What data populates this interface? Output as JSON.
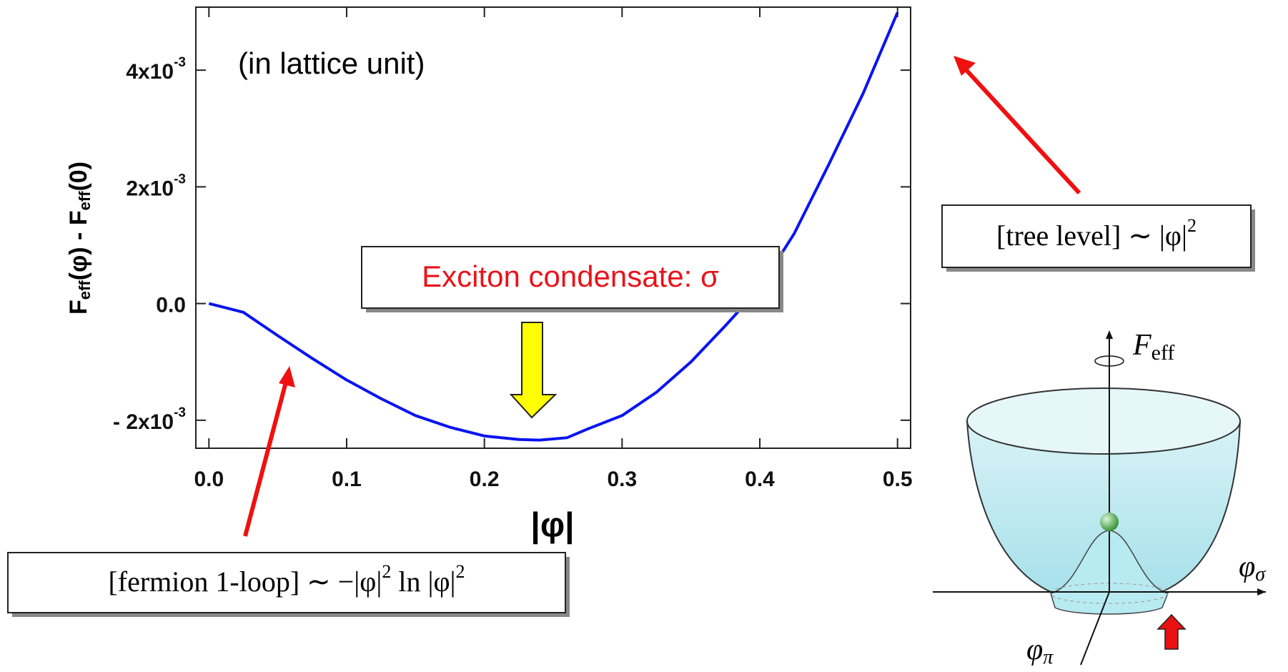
{
  "chart_data": {
    "type": "line",
    "annotation": "(in lattice unit)",
    "xlabel": "|φ|",
    "ylabel": [
      "F",
      "eff",
      "(φ) - F",
      "eff",
      "(0)"
    ],
    "x": [
      0,
      0.025,
      0.05,
      0.075,
      0.1,
      0.125,
      0.15,
      0.175,
      0.2,
      0.225,
      0.24,
      0.26,
      0.275,
      0.3,
      0.325,
      0.35,
      0.375,
      0.4,
      0.425,
      0.45,
      0.475,
      0.5
    ],
    "series": [
      {
        "color": "#0a14f0",
        "values": [
          0,
          -0.00015,
          -0.00055,
          -0.00094,
          -0.00131,
          -0.00163,
          -0.00192,
          -0.00212,
          -0.00227,
          -0.00233,
          -0.00234,
          -0.0023,
          -0.00215,
          -0.00192,
          -0.00152,
          -0.001,
          -0.00038,
          0.00027,
          0.0012,
          0.00238,
          0.0036,
          0.00499
        ]
      }
    ],
    "xlim": [
      -0.0095,
      0.5095
    ],
    "ylim": [
      -0.00248,
      0.00508
    ],
    "xticks": [
      {
        "value": 0,
        "label": "0.0"
      },
      0.1,
      0.2,
      0.3,
      0.4,
      0.5
    ],
    "yticks": [
      {
        "value": -0.002,
        "label": "- 2x10",
        "sup": "-3"
      },
      {
        "value": 0,
        "label": "0.0"
      },
      {
        "value": 0.002,
        "label": "2x10",
        "sup": "-3"
      },
      {
        "value": 0.004,
        "label": "4x10",
        "sup": "-3"
      }
    ],
    "callouts": {
      "minimum": "Exciton condensate: σ",
      "tree": [
        "[tree level] ∼ |φ|",
        "2"
      ],
      "loop": [
        "[fermion 1-loop] ∼ −|φ|",
        "2",
        " ln |φ|",
        "2"
      ]
    },
    "potential": {
      "vertical": [
        "F",
        "eff"
      ],
      "sigma": [
        "φ",
        "σ"
      ],
      "pi": [
        "φ",
        "π"
      ]
    }
  }
}
